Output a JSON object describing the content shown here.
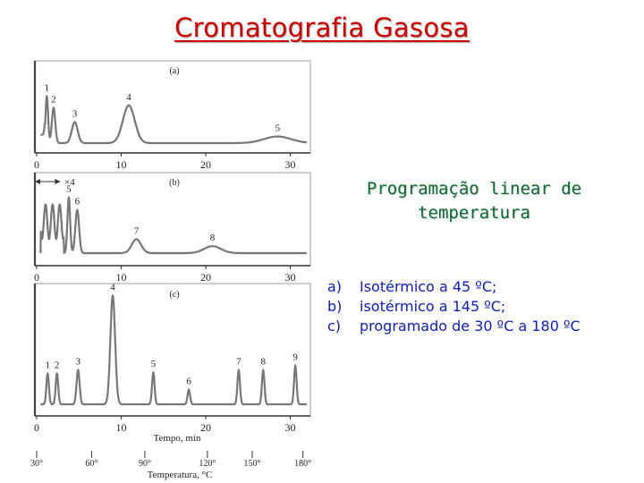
{
  "title": "Cromatografia Gasosa",
  "program_label": "Programação linear de temperatura",
  "conditions": [
    {
      "marker": "a)",
      "text": "Isotérmico a 45 ºC;"
    },
    {
      "marker": "b)",
      "text": "isotérmico a 145 ºC;"
    },
    {
      "marker": "c)",
      "text": "programado de 30 ºC a 180 ºC"
    }
  ],
  "figure": {
    "panels": [
      {
        "label": "(a)",
        "annotation": "",
        "peaks": [
          {
            "label": "1",
            "t": 1.2,
            "h": 0.85,
            "w": 0.15
          },
          {
            "label": "2",
            "t": 2.0,
            "h": 0.64,
            "w": 0.2
          },
          {
            "label": "3",
            "t": 4.5,
            "h": 0.38,
            "w": 0.35
          },
          {
            "label": "4",
            "t": 10.9,
            "h": 0.68,
            "w": 0.7
          },
          {
            "label": "5",
            "t": 28.5,
            "h": 0.12,
            "w": 1.6
          }
        ]
      },
      {
        "label": "(b)",
        "annotation": "×4",
        "peaks": [
          {
            "label": "5",
            "t": 3.8,
            "h": 0.8,
            "w": 0.16
          },
          {
            "label": "6",
            "t": 4.8,
            "h": 0.62,
            "w": 0.22
          },
          {
            "label": "7",
            "t": 11.8,
            "h": 0.2,
            "w": 0.55
          },
          {
            "label": "8",
            "t": 20.8,
            "h": 0.1,
            "w": 1.0
          }
        ]
      },
      {
        "label": "(c)",
        "annotation": "",
        "peaks": [
          {
            "label": "1",
            "t": 1.3,
            "h": 0.27,
            "w": 0.15
          },
          {
            "label": "2",
            "t": 2.4,
            "h": 0.27,
            "w": 0.15
          },
          {
            "label": "3",
            "t": 4.9,
            "h": 0.3,
            "w": 0.18
          },
          {
            "label": "4",
            "t": 9.0,
            "h": 0.95,
            "w": 0.28
          },
          {
            "label": "5",
            "t": 13.8,
            "h": 0.28,
            "w": 0.15
          },
          {
            "label": "6",
            "t": 18.0,
            "h": 0.13,
            "w": 0.15
          },
          {
            "label": "7",
            "t": 23.9,
            "h": 0.3,
            "w": 0.15
          },
          {
            "label": "8",
            "t": 26.8,
            "h": 0.3,
            "w": 0.15
          },
          {
            "label": "9",
            "t": 30.6,
            "h": 0.34,
            "w": 0.15
          }
        ]
      }
    ],
    "time_axis": {
      "min": 0,
      "max": 32,
      "ticks": [
        0,
        10,
        20,
        30
      ],
      "label": "Tempo, min"
    },
    "temperature_axis": {
      "ticks": [
        {
          "t": 0,
          "label": "30°"
        },
        {
          "t": 6.5,
          "label": "60°"
        },
        {
          "t": 12.8,
          "label": "90°"
        },
        {
          "t": 20.2,
          "label": "120°"
        },
        {
          "t": 25.5,
          "label": "150°"
        },
        {
          "t": 31.5,
          "label": "180°"
        }
      ],
      "label": "Temperatura, °C"
    }
  },
  "colors": {
    "title": "#cc0000",
    "program_label": "#0a6a2e",
    "conditions": "#1020b0"
  }
}
